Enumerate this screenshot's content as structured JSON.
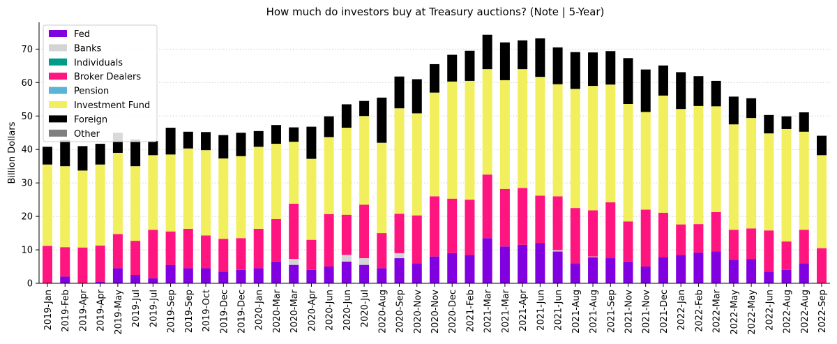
{
  "chart_data": {
    "type": "bar",
    "stacked": true,
    "title": "How much do investors buy at Treasury auctions? (Note | 5-Year)",
    "xlabel": "",
    "ylabel": "Billion Dollars",
    "ylim": [
      0,
      78
    ],
    "yticks": [
      0,
      10,
      20,
      30,
      40,
      50,
      60,
      70
    ],
    "grid": "horizontal-dotted",
    "legend_position": "top-left",
    "categories": [
      "2019-Jan",
      "2019-Feb",
      "2019-Apr",
      "2019-Apr",
      "2019-May",
      "2019-Jul",
      "2019-Jul",
      "2019-Sep",
      "2019-Sep",
      "2019-Oct",
      "2019-Dec",
      "2019-Dec",
      "2020-Jan",
      "2020-Mar",
      "2020-Mar",
      "2020-Apr",
      "2020-Jun",
      "2020-Jun",
      "2020-Jul",
      "2020-Aug",
      "2020-Sep",
      "2020-Nov",
      "2020-Nov",
      "2020-Dec",
      "2021-Feb",
      "2021-Mar",
      "2021-Mar",
      "2021-Apr",
      "2021-Jun",
      "2021-Jun",
      "2021-Aug",
      "2021-Aug",
      "2021-Sep",
      "2021-Nov",
      "2021-Nov",
      "2021-Dec",
      "2022-Jan",
      "2022-Feb",
      "2022-Mar",
      "2022-May",
      "2022-May",
      "2022-Jun",
      "2022-Aug",
      "2022-Aug",
      "2022-Sep"
    ],
    "series": [
      {
        "name": "Fed",
        "color": "#8000e0",
        "values": [
          0,
          2,
          0,
          0.5,
          4.5,
          2.5,
          1.5,
          5.5,
          4.5,
          4.5,
          3.5,
          4,
          4.5,
          6.5,
          5.5,
          4,
          5,
          6.5,
          5.5,
          4.5,
          7.5,
          6,
          8,
          9,
          8.5,
          13.5,
          11,
          11.5,
          12,
          9.5,
          6,
          7.8,
          7.5,
          6.5,
          5,
          7.8,
          8.5,
          9.2,
          9.5,
          7,
          7.2,
          3.5,
          4,
          6,
          0
        ]
      },
      {
        "name": "Banks",
        "color": "#d4d4d4",
        "values": [
          0,
          0,
          0,
          0,
          0,
          0,
          0,
          0,
          0,
          0,
          0,
          0,
          0,
          0,
          1.8,
          0,
          0,
          2,
          2,
          0,
          1.5,
          0,
          0,
          0,
          0,
          0,
          0,
          0,
          0,
          0.4,
          0,
          0.2,
          0,
          0,
          0,
          0,
          0,
          0,
          0,
          0,
          0,
          0,
          0,
          0,
          0
        ]
      },
      {
        "name": "Individuals",
        "color": "#009c8a",
        "values": [
          0,
          0,
          0,
          0,
          0,
          0,
          0,
          0,
          0,
          0,
          0,
          0,
          0,
          0,
          0,
          0,
          0,
          0,
          0,
          0,
          0,
          0,
          0,
          0,
          0,
          0,
          0,
          0,
          0,
          0,
          0,
          0,
          0,
          0,
          0,
          0,
          0,
          0,
          0,
          0,
          0,
          0,
          0,
          0,
          0
        ]
      },
      {
        "name": "Broker Dealers",
        "color": "#ff1580",
        "values": [
          11.2,
          8.8,
          10.7,
          10.8,
          10.2,
          10.2,
          14.5,
          10,
          11.8,
          9.8,
          9.8,
          9.5,
          11.8,
          12.7,
          16.5,
          9,
          15.7,
          12,
          16,
          10.5,
          11.8,
          14.3,
          18,
          16.3,
          16.5,
          19,
          17.2,
          17,
          14.2,
          16.1,
          16.5,
          13.8,
          16.7,
          12,
          17,
          13.3,
          9.1,
          8.5,
          11.8,
          9,
          9.2,
          12.3,
          8.5,
          10,
          10.5
        ]
      },
      {
        "name": "Pension",
        "color": "#5ab4d6",
        "values": [
          0,
          0,
          0,
          0,
          0,
          0,
          0,
          0,
          0,
          0,
          0,
          0,
          0,
          0,
          0,
          0,
          0,
          0,
          0,
          0,
          0,
          0,
          0,
          0,
          0,
          0,
          0,
          0,
          0,
          0,
          0,
          0,
          0,
          0,
          0,
          0,
          0,
          0,
          0,
          0,
          0,
          0,
          0,
          0,
          0
        ]
      },
      {
        "name": "Investment Fund",
        "color": "#f2ef5e",
        "values": [
          24.3,
          24.2,
          23,
          24.2,
          24.3,
          22.3,
          22.3,
          23,
          24,
          25.5,
          24,
          24.5,
          24.5,
          22.5,
          18.5,
          24.2,
          23,
          26,
          26.5,
          27,
          31.5,
          30.5,
          31,
          35,
          35.5,
          31.5,
          32.5,
          35.5,
          35.5,
          33.5,
          35.6,
          37.2,
          35.2,
          35.1,
          29.2,
          35,
          34.5,
          35.3,
          31.6,
          31.5,
          33,
          29,
          33.6,
          29.3,
          27.8
        ]
      },
      {
        "name": "Foreign",
        "color": "#000000",
        "values": [
          5.3,
          7.8,
          7.3,
          6.2,
          6,
          8,
          4.2,
          8,
          5,
          5.4,
          7,
          7,
          4.7,
          5.6,
          4.3,
          9.6,
          6.2,
          7,
          4.5,
          13.5,
          9.5,
          10.2,
          8.5,
          8,
          9,
          10.3,
          11.3,
          8.6,
          11.5,
          11,
          11,
          10,
          10,
          13.7,
          12.7,
          9,
          11,
          8.9,
          7.6,
          8.3,
          5.9,
          5.5,
          3.8,
          5.8,
          5.8
        ]
      },
      {
        "name": "Other",
        "color": "#7f7f7f",
        "values": [
          0,
          0,
          0,
          0,
          0,
          0,
          0,
          0,
          0,
          0,
          0,
          0,
          0,
          0,
          0,
          0,
          0,
          0,
          0,
          0,
          0,
          0,
          0,
          0,
          0,
          0,
          0,
          0,
          0,
          0,
          0,
          0,
          0,
          0,
          0,
          0,
          0,
          0,
          0,
          0,
          0,
          0,
          0,
          0,
          0
        ]
      }
    ]
  }
}
